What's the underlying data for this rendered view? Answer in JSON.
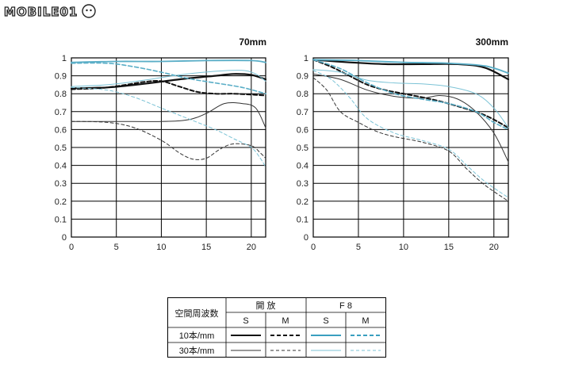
{
  "brand": {
    "logo_text": "MOBILE01"
  },
  "chart_data": [
    {
      "type": "line",
      "title": "70mm",
      "xlim": [
        0,
        21.6
      ],
      "ylim": [
        0,
        1
      ],
      "xticks": [
        0,
        5,
        10,
        15,
        20
      ],
      "yticks": [
        "0",
        "0.1",
        "0.2",
        "0.3",
        "0.4",
        "0.5",
        "0.6",
        "0.7",
        "0.8",
        "0.9",
        "1"
      ],
      "grid": true,
      "series": [
        {
          "key": "open_10_s",
          "color": "#111111",
          "dash": "none",
          "width": 2.2,
          "points": [
            [
              0,
              0.83
            ],
            [
              4,
              0.835
            ],
            [
              8,
              0.855
            ],
            [
              12,
              0.88
            ],
            [
              16,
              0.9
            ],
            [
              18,
              0.91
            ],
            [
              20,
              0.905
            ],
            [
              21.6,
              0.88
            ]
          ]
        },
        {
          "key": "open_10_m",
          "color": "#111111",
          "dash": "5,3",
          "width": 2.0,
          "points": [
            [
              0,
              0.825
            ],
            [
              4,
              0.835
            ],
            [
              8,
              0.865
            ],
            [
              10,
              0.87
            ],
            [
              12,
              0.84
            ],
            [
              14,
              0.81
            ],
            [
              16,
              0.8
            ],
            [
              18,
              0.8
            ],
            [
              20,
              0.795
            ],
            [
              21.6,
              0.79
            ]
          ]
        },
        {
          "key": "open_30_s",
          "color": "#333333",
          "dash": "none",
          "width": 1.0,
          "points": [
            [
              0,
              0.645
            ],
            [
              5,
              0.645
            ],
            [
              10,
              0.645
            ],
            [
              13,
              0.655
            ],
            [
              15,
              0.69
            ],
            [
              17,
              0.745
            ],
            [
              19,
              0.745
            ],
            [
              20.5,
              0.72
            ],
            [
              21.6,
              0.61
            ]
          ]
        },
        {
          "key": "open_30_m",
          "color": "#333333",
          "dash": "4,3",
          "width": 1.0,
          "points": [
            [
              0,
              0.645
            ],
            [
              4,
              0.64
            ],
            [
              7,
              0.61
            ],
            [
              10,
              0.54
            ],
            [
              12,
              0.47
            ],
            [
              13.5,
              0.435
            ],
            [
              15,
              0.44
            ],
            [
              16.5,
              0.49
            ],
            [
              18,
              0.52
            ],
            [
              20,
              0.51
            ],
            [
              21,
              0.47
            ],
            [
              21.6,
              0.44
            ]
          ]
        },
        {
          "key": "f8_10_s",
          "color": "#5aaec7",
          "dash": "none",
          "width": 1.8,
          "points": [
            [
              0,
              0.975
            ],
            [
              5,
              0.98
            ],
            [
              10,
              0.98
            ],
            [
              15,
              0.985
            ],
            [
              20,
              0.985
            ],
            [
              21.6,
              0.975
            ]
          ]
        },
        {
          "key": "f8_10_m",
          "color": "#5aaec7",
          "dash": "5,3",
          "width": 1.6,
          "points": [
            [
              0,
              0.97
            ],
            [
              4,
              0.97
            ],
            [
              7,
              0.95
            ],
            [
              10,
              0.92
            ],
            [
              13,
              0.885
            ],
            [
              16,
              0.86
            ],
            [
              19,
              0.835
            ],
            [
              21.6,
              0.8
            ]
          ]
        },
        {
          "key": "f8_30_s",
          "color": "#7cc3d6",
          "dash": "none",
          "width": 1.0,
          "points": [
            [
              0,
              0.84
            ],
            [
              4,
              0.85
            ],
            [
              8,
              0.875
            ],
            [
              12,
              0.905
            ],
            [
              16,
              0.925
            ],
            [
              19,
              0.93
            ],
            [
              20.5,
              0.91
            ],
            [
              21.6,
              0.87
            ]
          ]
        },
        {
          "key": "f8_30_m",
          "color": "#7cc3d6",
          "dash": "4,3",
          "width": 1.0,
          "points": [
            [
              0,
              0.835
            ],
            [
              4,
              0.82
            ],
            [
              7,
              0.78
            ],
            [
              10,
              0.72
            ],
            [
              13,
              0.66
            ],
            [
              16,
              0.6
            ],
            [
              18,
              0.55
            ],
            [
              20,
              0.5
            ],
            [
              21,
              0.44
            ],
            [
              21.6,
              0.39
            ]
          ]
        }
      ]
    },
    {
      "type": "line",
      "title": "300mm",
      "xlim": [
        0,
        21.6
      ],
      "ylim": [
        0,
        1
      ],
      "xticks": [
        0,
        5,
        10,
        15,
        20
      ],
      "yticks": [
        "0",
        "0.1",
        "0.2",
        "0.3",
        "0.4",
        "0.5",
        "0.6",
        "0.7",
        "0.8",
        "0.9",
        "1"
      ],
      "grid": true,
      "series": [
        {
          "key": "open_10_s",
          "color": "#111111",
          "dash": "none",
          "width": 2.2,
          "points": [
            [
              0,
              0.99
            ],
            [
              4,
              0.975
            ],
            [
              8,
              0.965
            ],
            [
              12,
              0.965
            ],
            [
              16,
              0.965
            ],
            [
              19,
              0.945
            ],
            [
              21.6,
              0.88
            ]
          ]
        },
        {
          "key": "open_10_m",
          "color": "#111111",
          "dash": "5,3",
          "width": 2.0,
          "points": [
            [
              0,
              0.99
            ],
            [
              2,
              0.95
            ],
            [
              4,
              0.9
            ],
            [
              6,
              0.85
            ],
            [
              8,
              0.82
            ],
            [
              10,
              0.8
            ],
            [
              13,
              0.77
            ],
            [
              16,
              0.73
            ],
            [
              19,
              0.68
            ],
            [
              21.6,
              0.61
            ]
          ]
        },
        {
          "key": "open_30_s",
          "color": "#333333",
          "dash": "none",
          "width": 1.0,
          "points": [
            [
              0,
              0.91
            ],
            [
              3,
              0.88
            ],
            [
              6,
              0.82
            ],
            [
              9,
              0.785
            ],
            [
              12,
              0.775
            ],
            [
              14,
              0.79
            ],
            [
              16,
              0.77
            ],
            [
              18,
              0.7
            ],
            [
              20,
              0.58
            ],
            [
              21.6,
              0.42
            ]
          ]
        },
        {
          "key": "open_30_m",
          "color": "#333333",
          "dash": "4,3",
          "width": 1.0,
          "points": [
            [
              0,
              0.89
            ],
            [
              1.5,
              0.82
            ],
            [
              3,
              0.7
            ],
            [
              5,
              0.64
            ],
            [
              7,
              0.59
            ],
            [
              9,
              0.56
            ],
            [
              12,
              0.53
            ],
            [
              15,
              0.48
            ],
            [
              17,
              0.38
            ],
            [
              19,
              0.29
            ],
            [
              21.6,
              0.2
            ]
          ]
        },
        {
          "key": "f8_10_s",
          "color": "#5aaec7",
          "dash": "none",
          "width": 1.8,
          "points": [
            [
              0,
              0.99
            ],
            [
              5,
              0.985
            ],
            [
              10,
              0.975
            ],
            [
              15,
              0.97
            ],
            [
              19,
              0.955
            ],
            [
              21.6,
              0.915
            ]
          ]
        },
        {
          "key": "f8_10_m",
          "color": "#5aaec7",
          "dash": "5,3",
          "width": 1.6,
          "points": [
            [
              0,
              0.99
            ],
            [
              3,
              0.94
            ],
            [
              6,
              0.86
            ],
            [
              9,
              0.8
            ],
            [
              12,
              0.77
            ],
            [
              15,
              0.745
            ],
            [
              18,
              0.7
            ],
            [
              20,
              0.64
            ],
            [
              21.6,
              0.6
            ]
          ]
        },
        {
          "key": "f8_30_s",
          "color": "#7cc3d6",
          "dash": "none",
          "width": 1.0,
          "points": [
            [
              0,
              0.935
            ],
            [
              3,
              0.92
            ],
            [
              6,
              0.875
            ],
            [
              9,
              0.86
            ],
            [
              12,
              0.855
            ],
            [
              15,
              0.84
            ],
            [
              18,
              0.8
            ],
            [
              20,
              0.72
            ],
            [
              21.6,
              0.61
            ]
          ]
        },
        {
          "key": "f8_30_m",
          "color": "#7cc3d6",
          "dash": "4,3",
          "width": 1.0,
          "points": [
            [
              0,
              0.93
            ],
            [
              2,
              0.88
            ],
            [
              4,
              0.78
            ],
            [
              6,
              0.66
            ],
            [
              9,
              0.58
            ],
            [
              12,
              0.54
            ],
            [
              15,
              0.49
            ],
            [
              17,
              0.4
            ],
            [
              19,
              0.31
            ],
            [
              21.6,
              0.22
            ]
          ]
        }
      ]
    }
  ],
  "legend": {
    "header_freq": "空間周波数",
    "header_open": "開 放",
    "header_f8": "F 8",
    "col_s": "S",
    "col_m": "M",
    "row_10": "10本/mm",
    "row_30": "30本/mm"
  }
}
